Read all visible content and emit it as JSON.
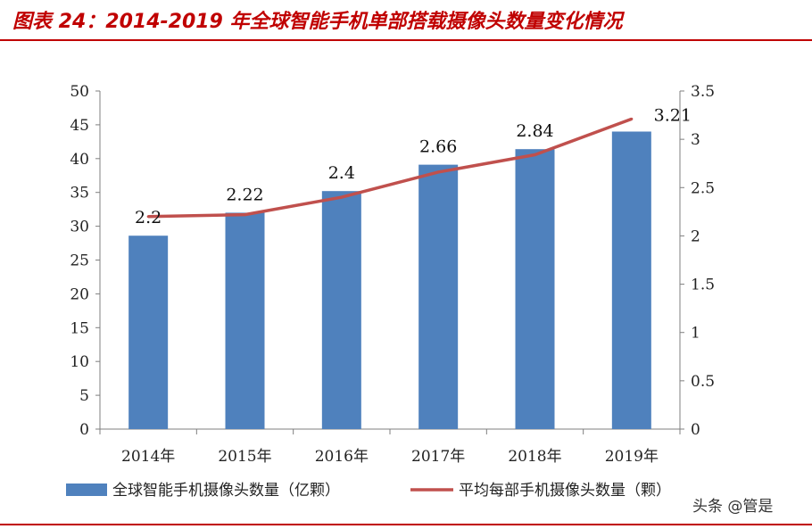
{
  "title": "图表 24：2014-2019 年全球智能手机单部搭载摄像头数量变化情况",
  "watermark": "头条 @管是",
  "colors": {
    "bar": "#4f81bd",
    "line": "#c0504d",
    "title": "#c00000"
  },
  "chart_data": {
    "type": "bar",
    "categories": [
      "2014年",
      "2015年",
      "2016年",
      "2017年",
      "2018年",
      "2019年"
    ],
    "series": [
      {
        "name": "全球智能手机摄像头数量（亿颗）",
        "type": "bar",
        "axis": "left",
        "values": [
          28.6,
          32,
          35.2,
          39.1,
          41.4,
          44
        ]
      },
      {
        "name": "平均每部手机摄像头数量（颗）",
        "type": "line",
        "axis": "right",
        "values": [
          2.2,
          2.22,
          2.4,
          2.66,
          2.84,
          3.21
        ],
        "data_labels": [
          "2.2",
          "2.22",
          "2.4",
          "2.66",
          "2.84",
          "3.21"
        ]
      }
    ],
    "y_left": {
      "min": 0,
      "max": 50,
      "step": 5,
      "ticks": [
        "0",
        "5",
        "10",
        "15",
        "20",
        "25",
        "30",
        "35",
        "40",
        "45",
        "50"
      ]
    },
    "y_right": {
      "min": 0,
      "max": 3.5,
      "step": 0.5,
      "ticks": [
        "0",
        "0.5",
        "1",
        "1.5",
        "2",
        "2.5",
        "3",
        "3.5"
      ]
    },
    "legend_position": "bottom",
    "grid": false
  }
}
